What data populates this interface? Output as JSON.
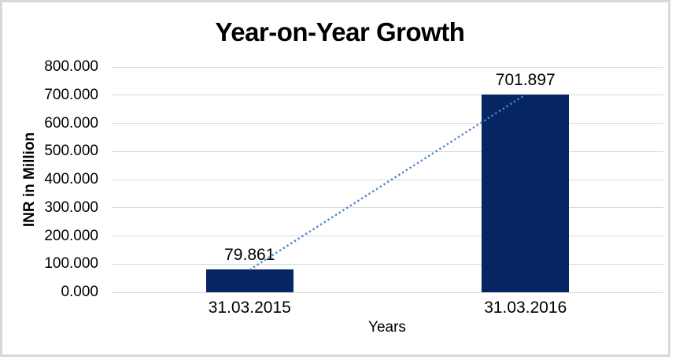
{
  "chart_data": {
    "type": "bar",
    "title": "Year-on-Year Growth",
    "categories": [
      "31.03.2015",
      "31.03.2016"
    ],
    "values": [
      79.861,
      701.897
    ],
    "data_labels": [
      "79.861",
      "701.897"
    ],
    "xlabel": "Years",
    "ylabel": "INR in Million",
    "ylim": [
      0,
      800
    ],
    "ytick_step": 100,
    "ytick_labels": [
      "0.000",
      "100.000",
      "200.000",
      "300.000",
      "400.000",
      "500.000",
      "600.000",
      "700.000",
      "800.000"
    ],
    "grid": true,
    "legend": "none",
    "bar_color": "#052563",
    "gridline_color": "#d9d9d9",
    "frame_color": "#d8d8d8",
    "trendline": {
      "style": "dotted",
      "color": "#4e86c8",
      "connects": [
        "bar-top-1",
        "bar-top-2"
      ]
    }
  }
}
